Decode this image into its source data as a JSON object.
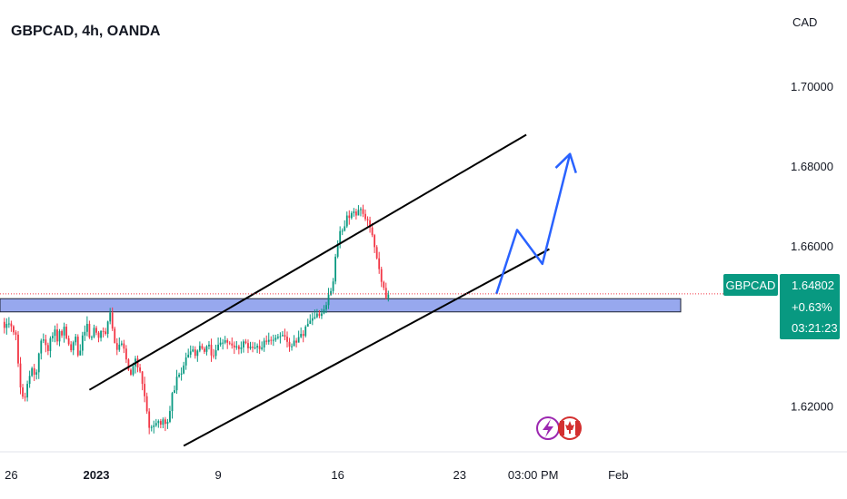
{
  "chart_data": {
    "type": "candlestick",
    "title": "GBPCAD, 4h, OANDA",
    "currency": "CAD",
    "ylim": [
      1.6085,
      1.7215
    ],
    "y_ticks": [
      {
        "value": 1.62,
        "label": "1.62000"
      },
      {
        "value": 1.66,
        "label": "1.66000"
      },
      {
        "value": 1.68,
        "label": "1.68000"
      },
      {
        "value": 1.7,
        "label": "1.70000"
      }
    ],
    "x_ticks": [
      {
        "bar": 3,
        "label": "26",
        "bold": false
      },
      {
        "bar": 40,
        "label": "2023",
        "bold": true
      },
      {
        "bar": 93,
        "label": "9",
        "bold": false
      },
      {
        "bar": 145,
        "label": "16",
        "bold": false
      },
      {
        "bar": 198,
        "label": "23",
        "bold": false
      },
      {
        "bar": 230,
        "label": "03:00 PM",
        "bold": false
      },
      {
        "bar": 267,
        "label": "Feb",
        "bold": false
      }
    ],
    "last_price": 1.64802,
    "symbol": "GBPCAD",
    "price_label": "1.64802",
    "change_label": "+0.63%",
    "countdown_label": "03:21:23",
    "support_zone": [
      1.6435,
      1.6468
    ],
    "channel_upper": [
      [
        37,
        1.624
      ],
      [
        227,
        1.6878
      ]
    ],
    "channel_lower": [
      [
        78,
        1.61
      ],
      [
        237,
        1.6592
      ]
    ],
    "projection": [
      [
        214,
        1.648
      ],
      [
        223,
        1.664
      ],
      [
        234,
        1.6555
      ],
      [
        246,
        1.683
      ]
    ],
    "candles_ohlc": [
      [
        1.641,
        1.6395,
        1.642,
        1.6381
      ],
      [
        1.6395,
        1.6405,
        1.6419,
        1.6378
      ],
      [
        1.6405,
        1.6406,
        1.6422,
        1.6395
      ],
      [
        1.6406,
        1.6399,
        1.6413,
        1.6385
      ],
      [
        1.6399,
        1.6384,
        1.6402,
        1.6377
      ],
      [
        1.6384,
        1.6378,
        1.6389,
        1.6364
      ],
      [
        1.6378,
        1.6306,
        1.6387,
        1.6297
      ],
      [
        1.6306,
        1.6246,
        1.6322,
        1.6229
      ],
      [
        1.6246,
        1.6223,
        1.6255,
        1.6217
      ],
      [
        1.6223,
        1.6221,
        1.6233,
        1.6211
      ],
      [
        1.6221,
        1.6255,
        1.6263,
        1.6211
      ],
      [
        1.6255,
        1.6275,
        1.6288,
        1.6245
      ],
      [
        1.6275,
        1.6294,
        1.6298,
        1.6272
      ],
      [
        1.6294,
        1.6278,
        1.6305,
        1.6262
      ],
      [
        1.6278,
        1.6284,
        1.6291,
        1.6266
      ],
      [
        1.6284,
        1.6331,
        1.6333,
        1.6267
      ],
      [
        1.6331,
        1.6363,
        1.6368,
        1.6316
      ],
      [
        1.6363,
        1.6366,
        1.6381,
        1.6357
      ],
      [
        1.6366,
        1.6352,
        1.6378,
        1.6334
      ],
      [
        1.6352,
        1.6337,
        1.6358,
        1.6327
      ],
      [
        1.6337,
        1.6369,
        1.6374,
        1.6321
      ],
      [
        1.6369,
        1.6375,
        1.6384,
        1.636
      ],
      [
        1.6375,
        1.6391,
        1.6401,
        1.6359
      ],
      [
        1.6391,
        1.6361,
        1.6406,
        1.6352
      ],
      [
        1.6361,
        1.6387,
        1.6392,
        1.6349
      ],
      [
        1.6387,
        1.6376,
        1.6391,
        1.637
      ],
      [
        1.6376,
        1.6398,
        1.6408,
        1.6358
      ],
      [
        1.6398,
        1.6369,
        1.6405,
        1.6366
      ],
      [
        1.6369,
        1.6354,
        1.6376,
        1.635
      ],
      [
        1.6354,
        1.6339,
        1.6362,
        1.6334
      ],
      [
        1.6339,
        1.6359,
        1.6363,
        1.6327
      ],
      [
        1.6359,
        1.6373,
        1.638,
        1.6351
      ],
      [
        1.6373,
        1.6326,
        1.6379,
        1.6322
      ],
      [
        1.6326,
        1.6338,
        1.6354,
        1.6326
      ],
      [
        1.6338,
        1.6376,
        1.6385,
        1.6326
      ],
      [
        1.6376,
        1.6385,
        1.6401,
        1.6362
      ],
      [
        1.6385,
        1.6405,
        1.6424,
        1.6374
      ],
      [
        1.6405,
        1.6371,
        1.6413,
        1.6367
      ],
      [
        1.6371,
        1.6372,
        1.6376,
        1.6364
      ],
      [
        1.6372,
        1.6395,
        1.6403,
        1.6369
      ],
      [
        1.6395,
        1.6383,
        1.64,
        1.6377
      ],
      [
        1.6383,
        1.637,
        1.6387,
        1.6359
      ],
      [
        1.637,
        1.6387,
        1.6389,
        1.6361
      ],
      [
        1.6387,
        1.6386,
        1.6396,
        1.6371
      ],
      [
        1.6386,
        1.638,
        1.6395,
        1.6376
      ],
      [
        1.638,
        1.6411,
        1.6413,
        1.637
      ],
      [
        1.6411,
        1.6433,
        1.6445,
        1.6404
      ],
      [
        1.6433,
        1.6393,
        1.6446,
        1.6387
      ],
      [
        1.6393,
        1.6357,
        1.6398,
        1.6356
      ],
      [
        1.6357,
        1.634,
        1.6369,
        1.6327
      ],
      [
        1.634,
        1.6353,
        1.6371,
        1.6335
      ],
      [
        1.6353,
        1.6356,
        1.6363,
        1.6349
      ],
      [
        1.6356,
        1.6343,
        1.6365,
        1.6332
      ],
      [
        1.6343,
        1.6316,
        1.6352,
        1.6307
      ],
      [
        1.6316,
        1.629,
        1.6319,
        1.6287
      ],
      [
        1.629,
        1.6278,
        1.6294,
        1.6275
      ],
      [
        1.6278,
        1.6299,
        1.6308,
        1.6274
      ],
      [
        1.6299,
        1.6318,
        1.6325,
        1.6281
      ],
      [
        1.6318,
        1.6296,
        1.6326,
        1.6284
      ],
      [
        1.6296,
        1.6286,
        1.6305,
        1.6282
      ],
      [
        1.6286,
        1.6255,
        1.6287,
        1.6239
      ],
      [
        1.6255,
        1.6224,
        1.6273,
        1.6209
      ],
      [
        1.6224,
        1.6186,
        1.6233,
        1.618
      ],
      [
        1.6186,
        1.6145,
        1.6194,
        1.6129
      ],
      [
        1.6145,
        1.6147,
        1.6152,
        1.6136
      ],
      [
        1.6147,
        1.6151,
        1.6163,
        1.6131
      ],
      [
        1.6151,
        1.6157,
        1.6167,
        1.6147
      ],
      [
        1.6157,
        1.6162,
        1.6166,
        1.6145
      ],
      [
        1.6162,
        1.6153,
        1.6167,
        1.6144
      ],
      [
        1.6153,
        1.6166,
        1.6171,
        1.6144
      ],
      [
        1.6166,
        1.6155,
        1.6172,
        1.6137
      ],
      [
        1.6155,
        1.616,
        1.6167,
        1.6142
      ],
      [
        1.616,
        1.6187,
        1.62,
        1.6157
      ],
      [
        1.6187,
        1.6232,
        1.6235,
        1.6168
      ],
      [
        1.6232,
        1.6239,
        1.6251,
        1.6232
      ],
      [
        1.6239,
        1.6273,
        1.629,
        1.623
      ],
      [
        1.6273,
        1.6278,
        1.6283,
        1.627
      ],
      [
        1.6278,
        1.6281,
        1.6296,
        1.6263
      ],
      [
        1.6281,
        1.6301,
        1.631,
        1.6279
      ],
      [
        1.6301,
        1.6321,
        1.6333,
        1.629
      ],
      [
        1.6321,
        1.6328,
        1.6343,
        1.632
      ],
      [
        1.6328,
        1.6336,
        1.6351,
        1.632
      ],
      [
        1.6336,
        1.6341,
        1.635,
        1.6334
      ],
      [
        1.6341,
        1.6325,
        1.6349,
        1.6318
      ],
      [
        1.6325,
        1.6338,
        1.6341,
        1.631
      ],
      [
        1.6338,
        1.635,
        1.6361,
        1.6334
      ],
      [
        1.635,
        1.6343,
        1.6356,
        1.634
      ],
      [
        1.6343,
        1.6335,
        1.6348,
        1.633
      ],
      [
        1.6335,
        1.6349,
        1.6352,
        1.6326
      ],
      [
        1.6349,
        1.6353,
        1.6362,
        1.6341
      ],
      [
        1.6353,
        1.6326,
        1.6368,
        1.631
      ],
      [
        1.6326,
        1.6325,
        1.6342,
        1.6318
      ],
      [
        1.6325,
        1.6339,
        1.6353,
        1.6316
      ],
      [
        1.6339,
        1.6353,
        1.6371,
        1.6338
      ],
      [
        1.6353,
        1.6358,
        1.6371,
        1.6348
      ],
      [
        1.6358,
        1.6358,
        1.6367,
        1.6341
      ],
      [
        1.6358,
        1.6364,
        1.6375,
        1.6354
      ],
      [
        1.6364,
        1.6358,
        1.6369,
        1.6342
      ],
      [
        1.6358,
        1.6356,
        1.6362,
        1.6352
      ],
      [
        1.6356,
        1.6351,
        1.6371,
        1.6343
      ],
      [
        1.6351,
        1.6346,
        1.6361,
        1.633
      ],
      [
        1.6346,
        1.6349,
        1.6362,
        1.634
      ],
      [
        1.6349,
        1.6342,
        1.6353,
        1.6329
      ],
      [
        1.6342,
        1.6346,
        1.6361,
        1.6331
      ],
      [
        1.6346,
        1.6361,
        1.6366,
        1.6333
      ],
      [
        1.6361,
        1.6357,
        1.6367,
        1.6354
      ],
      [
        1.6357,
        1.6344,
        1.6366,
        1.6332
      ],
      [
        1.6344,
        1.6348,
        1.636,
        1.634
      ],
      [
        1.6348,
        1.6345,
        1.636,
        1.6334
      ],
      [
        1.6345,
        1.6346,
        1.6359,
        1.6341
      ],
      [
        1.6346,
        1.635,
        1.6356,
        1.6332
      ],
      [
        1.635,
        1.6342,
        1.6365,
        1.633
      ],
      [
        1.6342,
        1.6346,
        1.6361,
        1.6338
      ],
      [
        1.6346,
        1.6363,
        1.637,
        1.6335
      ],
      [
        1.6363,
        1.636,
        1.6376,
        1.6353
      ],
      [
        1.636,
        1.6365,
        1.6383,
        1.6353
      ],
      [
        1.6365,
        1.6364,
        1.6374,
        1.6353
      ],
      [
        1.6364,
        1.6365,
        1.6378,
        1.635
      ],
      [
        1.6365,
        1.637,
        1.6378,
        1.636
      ],
      [
        1.637,
        1.6373,
        1.638,
        1.6366
      ],
      [
        1.6373,
        1.6374,
        1.6384,
        1.6356
      ],
      [
        1.6374,
        1.6377,
        1.6387,
        1.6374
      ],
      [
        1.6377,
        1.6373,
        1.6393,
        1.6364
      ],
      [
        1.6373,
        1.636,
        1.6386,
        1.6346
      ],
      [
        1.636,
        1.6348,
        1.637,
        1.6335
      ],
      [
        1.6348,
        1.6349,
        1.6356,
        1.6338
      ],
      [
        1.6349,
        1.6363,
        1.6377,
        1.6352
      ],
      [
        1.6363,
        1.6358,
        1.637,
        1.6346
      ],
      [
        1.6358,
        1.6372,
        1.6388,
        1.6366
      ],
      [
        1.6372,
        1.638,
        1.6396,
        1.6369
      ],
      [
        1.638,
        1.6375,
        1.6389,
        1.6359
      ],
      [
        1.6375,
        1.6398,
        1.6402,
        1.6371
      ],
      [
        1.6398,
        1.6405,
        1.6418,
        1.64
      ],
      [
        1.6405,
        1.6413,
        1.6429,
        1.6407
      ],
      [
        1.6413,
        1.6419,
        1.6433,
        1.6402
      ],
      [
        1.6419,
        1.6422,
        1.6441,
        1.6416
      ],
      [
        1.6422,
        1.6431,
        1.6442,
        1.6419
      ],
      [
        1.6431,
        1.6425,
        1.6439,
        1.6419
      ],
      [
        1.6425,
        1.6431,
        1.6443,
        1.6417
      ],
      [
        1.6431,
        1.6441,
        1.6452,
        1.6429
      ],
      [
        1.6441,
        1.6452,
        1.646,
        1.6432
      ],
      [
        1.6452,
        1.6478,
        1.6495,
        1.6442
      ],
      [
        1.6478,
        1.6487,
        1.6495,
        1.6475
      ],
      [
        1.6487,
        1.6511,
        1.652,
        1.6481
      ],
      [
        1.6511,
        1.6573,
        1.658,
        1.6504
      ],
      [
        1.6573,
        1.6605,
        1.6614,
        1.6569
      ],
      [
        1.6605,
        1.6637,
        1.6649,
        1.6594
      ],
      [
        1.6637,
        1.6638,
        1.6644,
        1.6627
      ],
      [
        1.6638,
        1.6649,
        1.6664,
        1.6636
      ],
      [
        1.6649,
        1.6676,
        1.6686,
        1.6645
      ],
      [
        1.6676,
        1.667,
        1.6689,
        1.6653
      ],
      [
        1.667,
        1.6682,
        1.6687,
        1.6666
      ],
      [
        1.6682,
        1.6686,
        1.6695,
        1.6673
      ],
      [
        1.6686,
        1.6676,
        1.6693,
        1.6666
      ],
      [
        1.6676,
        1.669,
        1.6702,
        1.6685
      ],
      [
        1.669,
        1.6692,
        1.6697,
        1.6674
      ],
      [
        1.6692,
        1.668,
        1.6703,
        1.6672
      ],
      [
        1.668,
        1.6667,
        1.6691,
        1.6662
      ],
      [
        1.6667,
        1.6664,
        1.6674,
        1.6649
      ],
      [
        1.6664,
        1.6646,
        1.6673,
        1.6633
      ],
      [
        1.6646,
        1.6627,
        1.6657,
        1.6622
      ],
      [
        1.6627,
        1.6597,
        1.663,
        1.6582
      ],
      [
        1.6597,
        1.6569,
        1.6602,
        1.6566
      ],
      [
        1.6569,
        1.6542,
        1.6585,
        1.653
      ],
      [
        1.6542,
        1.651,
        1.6548,
        1.6497
      ],
      [
        1.651,
        1.6495,
        1.6513,
        1.6489
      ],
      [
        1.6495,
        1.647,
        1.6508,
        1.6466
      ],
      [
        1.647,
        1.6478,
        1.6488,
        1.6461
      ]
    ]
  },
  "header": {
    "title": "GBPCAD, 4h, OANDA"
  },
  "axis": {
    "currency": "CAD"
  },
  "badges": {
    "symbol": "GBPCAD",
    "price": "1.64802",
    "change": "+0.63%",
    "countdown": "03:21:23"
  }
}
